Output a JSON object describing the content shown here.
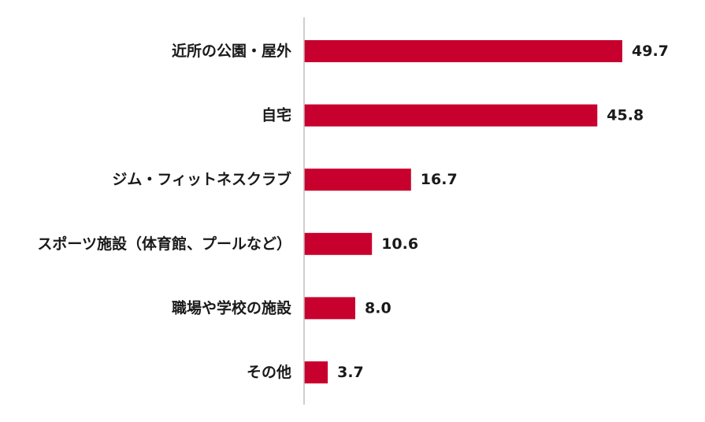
{
  "chart_data": {
    "type": "bar",
    "orientation": "horizontal",
    "categories": [
      "近所の公園・屋外",
      "自宅",
      "ジム・フィットネスクラブ",
      "スポーツ施設（体育館、プールなど）",
      "職場や学校の施設",
      "その他"
    ],
    "values": [
      49.7,
      45.8,
      16.7,
      10.6,
      8.0,
      3.7
    ],
    "value_labels": [
      "49.7",
      "45.8",
      "16.7",
      "10.6",
      "8.0",
      "3.7"
    ],
    "title": "",
    "xlabel": "",
    "ylabel": "",
    "xlim": [
      0,
      62
    ],
    "grid": false,
    "legend": "none",
    "colors": {
      "bar": "#c8002e",
      "axis": "#bfbfbf",
      "text": "#1a1a1a"
    }
  }
}
